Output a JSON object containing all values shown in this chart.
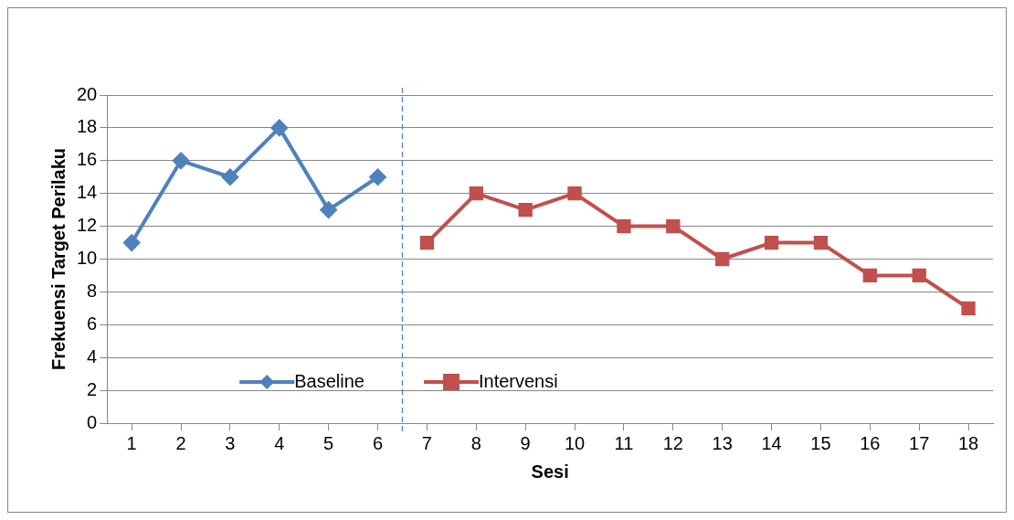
{
  "chart_data": {
    "type": "line",
    "xlabel": "Sesi",
    "ylabel": "Frekuensi Target Perilaku",
    "xlim": [
      0.5,
      18.5
    ],
    "xticks": [
      1,
      2,
      3,
      4,
      5,
      6,
      7,
      8,
      9,
      10,
      11,
      12,
      13,
      14,
      15,
      16,
      17,
      18
    ],
    "ylim": [
      0,
      20
    ],
    "yticks": [
      0,
      2,
      4,
      6,
      8,
      10,
      12,
      14,
      16,
      18,
      20
    ],
    "series": [
      {
        "name": "Baseline",
        "color": "#4f81bd",
        "marker": "diamond",
        "x": [
          1,
          2,
          3,
          4,
          5,
          6
        ],
        "values": [
          11,
          16,
          15,
          18,
          13,
          15
        ]
      },
      {
        "name": "Intervensi",
        "color": "#c0504d",
        "marker": "square",
        "x": [
          7,
          8,
          9,
          10,
          11,
          12,
          13,
          14,
          15,
          16,
          17,
          18
        ],
        "values": [
          11,
          14,
          13,
          14,
          12,
          12,
          10,
          11,
          11,
          9,
          9,
          7
        ]
      }
    ],
    "ref_lines": [
      {
        "axis": "x",
        "value": 6.5,
        "color": "#4f81bd",
        "line_style": "dashed"
      }
    ],
    "grid": "y",
    "legend": "bottom"
  }
}
